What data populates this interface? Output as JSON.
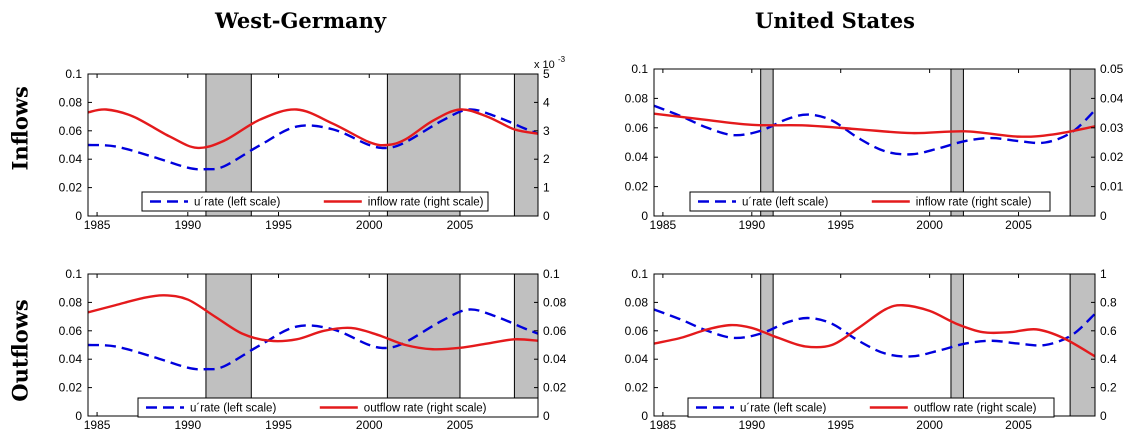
{
  "figure": {
    "col_titles": [
      "West-Germany",
      "United States"
    ],
    "row_titles": [
      "Inflows",
      "Outflows"
    ]
  },
  "colors": {
    "left_series": "#0000dd",
    "right_series": "#e41a1c",
    "recession": "#c0c0c0"
  },
  "chart_data": [
    {
      "type": "line",
      "country": "West-Germany",
      "row": "Inflows",
      "xlim": [
        1984.5,
        2009.3
      ],
      "xticks": [
        1985,
        1990,
        1995,
        2000,
        2005
      ],
      "ylim_left": [
        0,
        0.1
      ],
      "yticks_left": [
        "0",
        "0.02",
        "0.04",
        "0.06",
        "0.08",
        "0.1"
      ],
      "ylim_right": [
        0,
        5
      ],
      "yticks_right": [
        "0",
        "1",
        "2",
        "3",
        "4",
        "5"
      ],
      "right_exponent": "x 10",
      "right_exponent_power": "-3",
      "recessions": [
        [
          1991.0,
          1993.5
        ],
        [
          2001.0,
          2005.0
        ],
        [
          2008.0,
          2009.3
        ]
      ],
      "legend": [
        "u´rate (left scale)",
        "inflow rate (right scale)"
      ],
      "series": [
        {
          "name": "u´rate (left scale)",
          "axis": "left",
          "style": "dashed",
          "x": [
            1984.5,
            1986,
            1988,
            1990,
            1991,
            1992,
            1994,
            1996,
            1998,
            2000,
            2001,
            2002,
            2004,
            2005.5,
            2007,
            2008.5,
            2009.3
          ],
          "y": [
            0.05,
            0.049,
            0.042,
            0.034,
            0.033,
            0.035,
            0.05,
            0.063,
            0.061,
            0.05,
            0.048,
            0.052,
            0.067,
            0.075,
            0.07,
            0.062,
            0.058
          ]
        },
        {
          "name": "inflow rate (right scale)",
          "axis": "right",
          "style": "solid",
          "x": [
            1984.5,
            1985.5,
            1987,
            1989,
            1990.5,
            1992,
            1994,
            1996,
            1998,
            2000,
            2001,
            2002,
            2003.5,
            2005,
            2006.5,
            2008,
            2009.3
          ],
          "y": [
            3.65,
            3.75,
            3.5,
            2.8,
            2.4,
            2.65,
            3.4,
            3.75,
            3.25,
            2.6,
            2.5,
            2.7,
            3.35,
            3.75,
            3.5,
            3.05,
            2.9
          ]
        }
      ]
    },
    {
      "type": "line",
      "country": "United States",
      "row": "Inflows",
      "xlim": [
        1984.5,
        2009.3
      ],
      "xticks": [
        1985,
        1990,
        1995,
        2000,
        2005
      ],
      "ylim_left": [
        0,
        0.1
      ],
      "yticks_left": [
        "0",
        "0.02",
        "0.04",
        "0.06",
        "0.08",
        "0.1"
      ],
      "ylim_right": [
        0,
        0.05
      ],
      "yticks_right": [
        "0",
        "0.01",
        "0.02",
        "0.03",
        "0.04",
        "0.05"
      ],
      "recessions": [
        [
          1990.5,
          1991.2
        ],
        [
          2001.2,
          2001.9
        ],
        [
          2007.9,
          2009.3
        ]
      ],
      "legend": [
        "u´rate (left scale)",
        "inflow rate (right scale)"
      ],
      "series": [
        {
          "name": "u´rate (left scale)",
          "axis": "left",
          "style": "dashed",
          "x": [
            1984.5,
            1986,
            1987.5,
            1989,
            1990.5,
            1992,
            1993.2,
            1994.5,
            1996,
            1997.5,
            1999,
            2000.5,
            2002,
            2003.5,
            2005,
            2006.5,
            2008,
            2009.3
          ],
          "y": [
            0.075,
            0.068,
            0.06,
            0.055,
            0.058,
            0.066,
            0.069,
            0.065,
            0.053,
            0.044,
            0.042,
            0.046,
            0.051,
            0.053,
            0.051,
            0.05,
            0.057,
            0.072
          ]
        },
        {
          "name": "inflow rate (right scale)",
          "axis": "right",
          "style": "solid",
          "x": [
            1984.5,
            1987,
            1990,
            1993,
            1996,
            1999,
            2002,
            2005,
            2007,
            2009.3
          ],
          "y": [
            0.0348,
            0.033,
            0.031,
            0.0308,
            0.0295,
            0.0282,
            0.0288,
            0.027,
            0.0278,
            0.0305
          ]
        }
      ]
    },
    {
      "type": "line",
      "country": "West-Germany",
      "row": "Outflows",
      "xlim": [
        1984.5,
        2009.3
      ],
      "xticks": [
        1985,
        1990,
        1995,
        2000,
        2005
      ],
      "ylim_left": [
        0,
        0.1
      ],
      "yticks_left": [
        "0",
        "0.02",
        "0.04",
        "0.06",
        "0.08",
        "0.1"
      ],
      "ylim_right": [
        0,
        0.1
      ],
      "yticks_right": [
        "0",
        "0.02",
        "0.04",
        "0.06",
        "0.08",
        "0.1"
      ],
      "recessions": [
        [
          1991.0,
          1993.5
        ],
        [
          2001.0,
          2005.0
        ],
        [
          2008.0,
          2009.3
        ]
      ],
      "legend": [
        "u´rate (left scale)",
        "outflow rate (right scale)"
      ],
      "series": [
        {
          "name": "u´rate (left scale)",
          "axis": "left",
          "style": "dashed",
          "x": [
            1984.5,
            1986,
            1988,
            1990,
            1991,
            1992,
            1994,
            1996,
            1998,
            2000,
            2001,
            2002,
            2004,
            2005.5,
            2007,
            2008.5,
            2009.3
          ],
          "y": [
            0.05,
            0.049,
            0.042,
            0.034,
            0.033,
            0.035,
            0.05,
            0.063,
            0.061,
            0.05,
            0.048,
            0.052,
            0.067,
            0.075,
            0.07,
            0.062,
            0.058
          ]
        },
        {
          "name": "outflow rate (right scale)",
          "axis": "right",
          "style": "solid",
          "x": [
            1984.5,
            1986,
            1987.5,
            1988.7,
            1990,
            1991.5,
            1993,
            1994.5,
            1996,
            1997.5,
            1999,
            2000.5,
            2002,
            2003.5,
            2005,
            2006.5,
            2008,
            2009.3
          ],
          "y": [
            0.073,
            0.078,
            0.083,
            0.085,
            0.082,
            0.07,
            0.058,
            0.053,
            0.054,
            0.06,
            0.062,
            0.057,
            0.05,
            0.047,
            0.048,
            0.051,
            0.054,
            0.053
          ]
        }
      ]
    },
    {
      "type": "line",
      "country": "United States",
      "row": "Outflows",
      "xlim": [
        1984.5,
        2009.3
      ],
      "xticks": [
        1985,
        1990,
        1995,
        2000,
        2005
      ],
      "ylim_left": [
        0,
        0.1
      ],
      "yticks_left": [
        "0",
        "0.02",
        "0.04",
        "0.06",
        "0.08",
        "0.1"
      ],
      "ylim_right": [
        0,
        1
      ],
      "yticks_right": [
        "0",
        "0.2",
        "0.4",
        "0.6",
        "0.8",
        "1"
      ],
      "recessions": [
        [
          1990.5,
          1991.2
        ],
        [
          2001.2,
          2001.9
        ],
        [
          2007.9,
          2009.3
        ]
      ],
      "legend": [
        "u´rate (left scale)",
        "outflow rate (right scale)"
      ],
      "series": [
        {
          "name": "u´rate (left scale)",
          "axis": "left",
          "style": "dashed",
          "x": [
            1984.5,
            1986,
            1987.5,
            1989,
            1990.5,
            1992,
            1993.2,
            1994.5,
            1996,
            1997.5,
            1999,
            2000.5,
            2002,
            2003.5,
            2005,
            2006.5,
            2008,
            2009.3
          ],
          "y": [
            0.075,
            0.068,
            0.06,
            0.055,
            0.058,
            0.066,
            0.069,
            0.065,
            0.053,
            0.044,
            0.042,
            0.046,
            0.051,
            0.053,
            0.051,
            0.05,
            0.057,
            0.072
          ]
        },
        {
          "name": "outflow rate (right scale)",
          "axis": "right",
          "style": "solid",
          "x": [
            1984.5,
            1986,
            1987.5,
            1988.8,
            1990,
            1991.5,
            1993,
            1994.5,
            1996,
            1997.5,
            1998.5,
            2000,
            2001.5,
            2003,
            2004.5,
            2006,
            2007.5,
            2009.3
          ],
          "y": [
            0.51,
            0.55,
            0.61,
            0.64,
            0.62,
            0.55,
            0.49,
            0.5,
            0.62,
            0.75,
            0.78,
            0.74,
            0.65,
            0.59,
            0.59,
            0.61,
            0.55,
            0.42
          ]
        }
      ]
    }
  ]
}
